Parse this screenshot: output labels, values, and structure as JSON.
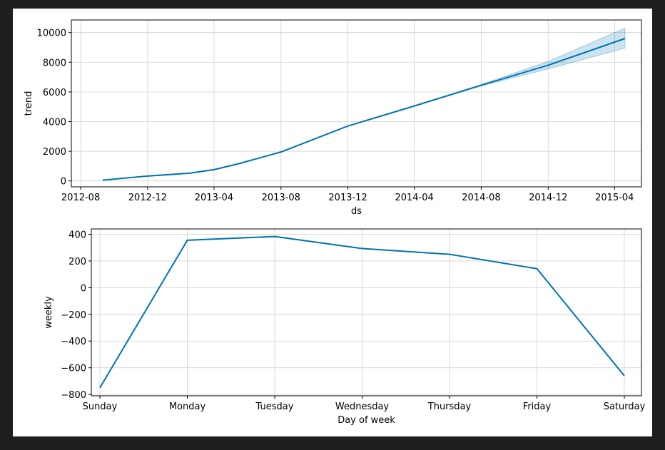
{
  "chart_data": [
    {
      "type": "area",
      "xlabel": "ds",
      "ylabel": "trend",
      "x_ticks": [
        "2012-08",
        "2012-12",
        "2013-04",
        "2013-08",
        "2013-12",
        "2014-04",
        "2014-08",
        "2014-12",
        "2015-04"
      ],
      "y_ticks": [
        0,
        2000,
        4000,
        6000,
        8000,
        10000
      ],
      "xlim": [
        "2012-07-15",
        "2015-05-20"
      ],
      "ylim": [
        -400,
        10850
      ],
      "grid": true,
      "line_color": "#0072B2",
      "band_color": "#0072B2",
      "series": [
        {
          "x": "2012-09-10",
          "y": 50,
          "lower": 50,
          "upper": 50
        },
        {
          "x": "2012-12-01",
          "y": 330,
          "lower": 330,
          "upper": 330
        },
        {
          "x": "2013-02-15",
          "y": 520,
          "lower": 520,
          "upper": 520
        },
        {
          "x": "2013-04-01",
          "y": 760,
          "lower": 760,
          "upper": 760
        },
        {
          "x": "2013-05-15",
          "y": 1150,
          "lower": 1150,
          "upper": 1150
        },
        {
          "x": "2013-08-01",
          "y": 1950,
          "lower": 1950,
          "upper": 1950
        },
        {
          "x": "2013-12-01",
          "y": 3700,
          "lower": 3700,
          "upper": 3700
        },
        {
          "x": "2014-04-01",
          "y": 5050,
          "lower": 5050,
          "upper": 5050
        },
        {
          "x": "2014-08-01",
          "y": 6450,
          "lower": 6400,
          "upper": 6500
        },
        {
          "x": "2014-12-01",
          "y": 7800,
          "lower": 7550,
          "upper": 8050
        },
        {
          "x": "2015-04-20",
          "y": 9600,
          "lower": 8950,
          "upper": 10300
        }
      ]
    },
    {
      "type": "line",
      "xlabel": "Day of week",
      "ylabel": "weekly",
      "categories": [
        "Sunday",
        "Monday",
        "Tuesday",
        "Wednesday",
        "Thursday",
        "Friday",
        "Saturday"
      ],
      "values": [
        -750,
        355,
        383,
        293,
        250,
        142,
        -660
      ],
      "y_ticks": [
        -800,
        -600,
        -400,
        -200,
        0,
        200,
        400
      ],
      "ylim": [
        -810,
        440
      ],
      "grid": true,
      "line_color": "#0072B2"
    }
  ]
}
